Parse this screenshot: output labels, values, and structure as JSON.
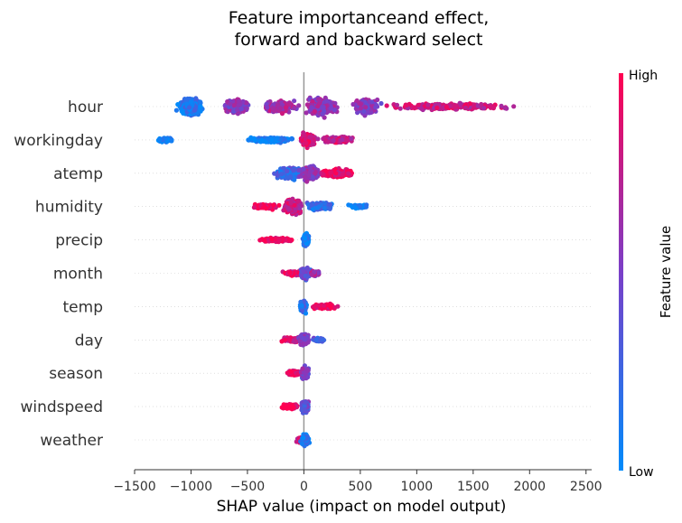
{
  "chart_data": {
    "type": "scatter",
    "subtype": "shap-beeswarm",
    "title": [
      "Feature importanceand effect,",
      "forward and backward select"
    ],
    "xlabel": "SHAP value (impact on model output)",
    "xlim": [
      -1500,
      2550
    ],
    "xticks": [
      -1500,
      -1000,
      -500,
      0,
      500,
      1000,
      1500,
      2000,
      2500
    ],
    "xtick_labels": [
      "−1500",
      "−1000",
      "−500",
      "0",
      "500",
      "1000",
      "1500",
      "2000",
      "2500"
    ],
    "zero_line": 0,
    "colorbar": {
      "label": "Feature value",
      "high": "High",
      "low": "Low",
      "low_color": "#008bfb",
      "high_color": "#ff0051"
    },
    "features": [
      {
        "name": "hour",
        "min": -1200,
        "max": 2380,
        "clusters": [
          {
            "center": -1000,
            "spread": 140,
            "width": 14,
            "count": 300,
            "color": 0.12
          },
          {
            "center": -600,
            "spread": 160,
            "width": 11,
            "count": 200,
            "color": 0.55
          },
          {
            "center": -200,
            "spread": 220,
            "width": 9,
            "count": 160,
            "color": 0.65
          },
          {
            "center": 150,
            "spread": 180,
            "width": 14,
            "count": 260,
            "color": 0.6
          },
          {
            "center": 550,
            "spread": 170,
            "width": 12,
            "count": 200,
            "color": 0.55
          },
          {
            "center": 1300,
            "spread": 700,
            "width": 5,
            "count": 260,
            "color": 0.8
          }
        ]
      },
      {
        "name": "workingday",
        "min": -1320,
        "max": 590,
        "clusters": [
          {
            "center": -1230,
            "spread": 90,
            "width": 3,
            "count": 70,
            "color": 0.05
          },
          {
            "center": -300,
            "spread": 300,
            "width": 4,
            "count": 180,
            "color": 0.06
          },
          {
            "center": 40,
            "spread": 90,
            "width": 11,
            "count": 200,
            "color": 0.88
          },
          {
            "center": 300,
            "spread": 200,
            "width": 5,
            "count": 150,
            "color": 0.82
          }
        ]
      },
      {
        "name": "atemp",
        "min": -380,
        "max": 610,
        "clusters": [
          {
            "center": -140,
            "spread": 160,
            "width": 10,
            "count": 200,
            "color": 0.25
          },
          {
            "center": 50,
            "spread": 120,
            "width": 12,
            "count": 220,
            "color": 0.55
          },
          {
            "center": 300,
            "spread": 200,
            "width": 7,
            "count": 200,
            "color": 0.9
          }
        ]
      },
      {
        "name": "humidity",
        "min": -520,
        "max": 650,
        "clusters": [
          {
            "center": -350,
            "spread": 150,
            "width": 4,
            "count": 100,
            "color": 0.95
          },
          {
            "center": -100,
            "spread": 110,
            "width": 12,
            "count": 250,
            "color": 0.78
          },
          {
            "center": 150,
            "spread": 160,
            "width": 6,
            "count": 140,
            "color": 0.2
          },
          {
            "center": 480,
            "spread": 130,
            "width": 3,
            "count": 50,
            "color": 0.05
          }
        ]
      },
      {
        "name": "precip",
        "min": -480,
        "max": 80,
        "clusters": [
          {
            "center": -260,
            "spread": 200,
            "width": 3,
            "count": 130,
            "color": 0.97
          },
          {
            "center": 20,
            "spread": 40,
            "width": 10,
            "count": 120,
            "color": 0.05
          }
        ]
      },
      {
        "name": "month",
        "min": -320,
        "max": 170,
        "clusters": [
          {
            "center": -80,
            "spread": 150,
            "width": 4,
            "count": 100,
            "color": 0.9
          },
          {
            "center": 10,
            "spread": 60,
            "width": 9,
            "count": 160,
            "color": 0.4
          },
          {
            "center": 100,
            "spread": 60,
            "width": 4,
            "count": 60,
            "color": 0.65
          }
        ]
      },
      {
        "name": "temp",
        "min": -60,
        "max": 340,
        "clusters": [
          {
            "center": -5,
            "spread": 40,
            "width": 9,
            "count": 150,
            "color": 0.2
          },
          {
            "center": 180,
            "spread": 150,
            "width": 4,
            "count": 110,
            "color": 0.96
          }
        ]
      },
      {
        "name": "day",
        "min": -280,
        "max": 230,
        "clusters": [
          {
            "center": -100,
            "spread": 150,
            "width": 4,
            "count": 110,
            "color": 0.85
          },
          {
            "center": 0,
            "spread": 60,
            "width": 9,
            "count": 160,
            "color": 0.5
          },
          {
            "center": 130,
            "spread": 90,
            "width": 3,
            "count": 60,
            "color": 0.3
          }
        ]
      },
      {
        "name": "season",
        "min": -200,
        "max": 90,
        "clusters": [
          {
            "center": -90,
            "spread": 90,
            "width": 4,
            "count": 90,
            "color": 0.9
          },
          {
            "center": 10,
            "spread": 45,
            "width": 9,
            "count": 150,
            "color": 0.5
          }
        ]
      },
      {
        "name": "windspeed",
        "min": -260,
        "max": 100,
        "clusters": [
          {
            "center": -120,
            "spread": 120,
            "width": 4,
            "count": 100,
            "color": 0.95
          },
          {
            "center": 10,
            "spread": 50,
            "width": 9,
            "count": 150,
            "color": 0.4
          }
        ]
      },
      {
        "name": "weather",
        "min": -90,
        "max": 90,
        "clusters": [
          {
            "center": -30,
            "spread": 40,
            "width": 5,
            "count": 70,
            "color": 0.85
          },
          {
            "center": 10,
            "spread": 50,
            "width": 9,
            "count": 140,
            "color": 0.1
          }
        ]
      }
    ]
  }
}
